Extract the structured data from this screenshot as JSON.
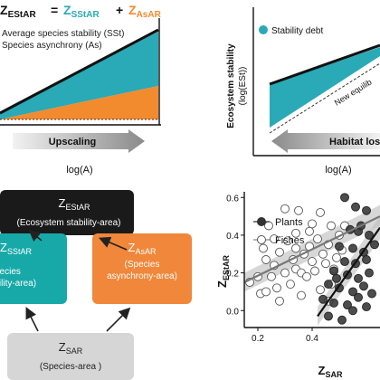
{
  "panelA": {
    "eq_left": "Z",
    "eq_left_sub": "EStAR",
    "eq_equals": "=",
    "eq_term1": "Z",
    "eq_term1_sub": "SStAR",
    "eq_plus": "+",
    "eq_term2": "Z",
    "eq_term2_sub": "AsAR",
    "legend_line1": "Average species stability (SSt)",
    "legend_line2": "Species asynchrony (As)",
    "arrow_label": "Upscaling",
    "xlabel": "log(A)",
    "colors": {
      "teal": "#2aa9b6",
      "orange": "#f28a2e",
      "black": "#111111"
    }
  },
  "panelB": {
    "legend_label": "Stability debt",
    "ylabel_line1": "Ecosystem stability",
    "ylabel_line2": "(log(ESt))",
    "new_eq_label": "New equilib",
    "arrow_label": "Habitat loss",
    "xlabel": "log(A)"
  },
  "panelC": {
    "top_z": "Z",
    "top_sub": "EStAR",
    "top_desc": "(Ecosystem stability-area)",
    "left_z": "Z",
    "left_sub": "SStAR",
    "left_desc1": "(Species",
    "left_desc2": "stability-area)",
    "right_z": "Z",
    "right_sub": "AsAR",
    "right_desc1": "(Species",
    "right_desc2": "asynchrony-area)",
    "bottom_z": "Z",
    "bottom_sub": "SAR",
    "bottom_desc": "(Species-area )",
    "colors": {
      "black_box": "#1a1a1a",
      "teal_box": "#17a9a8",
      "orange_box": "#f0873a",
      "grey_box": "#d6d6d6"
    }
  },
  "chart_data": {
    "type": "scatter",
    "title": "",
    "xlabel": "Z",
    "xlabel_sub": "SAR",
    "ylabel": "Z",
    "ylabel_sub": "EStAR",
    "xlim": [
      0.15,
      0.65
    ],
    "ylim": [
      -0.09,
      0.63
    ],
    "x_ticks": [
      0.2,
      0.4
    ],
    "x_tick_labels": [
      "0.2",
      "0.4"
    ],
    "y_ticks": [
      0.0,
      0.2,
      0.4,
      0.6
    ],
    "y_tick_labels": [
      "0.0",
      "0.2",
      "0.4",
      "0.6"
    ],
    "legend_position": "top-left",
    "series": [
      {
        "name": "Plants",
        "marker": "filled",
        "color": "#333333",
        "points": [
          [
            0.52,
            0.6
          ],
          [
            0.56,
            0.55
          ],
          [
            0.6,
            0.53
          ],
          [
            0.54,
            0.43
          ],
          [
            0.57,
            0.42
          ],
          [
            0.61,
            0.4
          ],
          [
            0.5,
            0.34
          ],
          [
            0.55,
            0.33
          ],
          [
            0.59,
            0.31
          ],
          [
            0.63,
            0.35
          ],
          [
            0.52,
            0.26
          ],
          [
            0.56,
            0.25
          ],
          [
            0.6,
            0.27
          ],
          [
            0.48,
            0.21
          ],
          [
            0.53,
            0.19
          ],
          [
            0.57,
            0.17
          ],
          [
            0.61,
            0.2
          ],
          [
            0.46,
            0.14
          ],
          [
            0.5,
            0.12
          ],
          [
            0.55,
            0.1
          ],
          [
            0.59,
            0.13
          ],
          [
            0.44,
            0.06
          ],
          [
            0.48,
            0.04
          ],
          [
            0.53,
            0.03
          ],
          [
            0.57,
            0.07
          ],
          [
            0.62,
            0.09
          ],
          [
            0.46,
            -0.03
          ],
          [
            0.51,
            -0.05
          ],
          [
            0.55,
            0.0
          ],
          [
            0.6,
            0.02
          ],
          [
            0.49,
            0.17
          ],
          [
            0.58,
            0.45
          ]
        ],
        "fit": [
          [
            0.42,
            -0.03
          ],
          [
            0.65,
            0.44
          ]
        ],
        "fit_band": [
          [
            0.42,
            -0.08,
            0.02
          ],
          [
            0.65,
            0.38,
            0.5
          ]
        ]
      },
      {
        "name": "Fishes",
        "marker": "open",
        "color": "#7a7a7a",
        "points": [
          [
            0.17,
            0.15
          ],
          [
            0.2,
            0.18
          ],
          [
            0.21,
            0.09
          ],
          [
            0.23,
            0.1
          ],
          [
            0.23,
            0.27
          ],
          [
            0.22,
            0.33
          ],
          [
            0.25,
            0.18
          ],
          [
            0.26,
            0.24
          ],
          [
            0.27,
            0.12
          ],
          [
            0.28,
            0.31
          ],
          [
            0.24,
            0.45
          ],
          [
            0.3,
            0.2
          ],
          [
            0.31,
            0.37
          ],
          [
            0.3,
            0.54
          ],
          [
            0.32,
            0.14
          ],
          [
            0.33,
            0.27
          ],
          [
            0.34,
            0.22
          ],
          [
            0.34,
            0.41
          ],
          [
            0.35,
            0.53
          ],
          [
            0.36,
            0.08
          ],
          [
            0.37,
            0.3
          ],
          [
            0.36,
            0.2
          ],
          [
            0.38,
            0.18
          ],
          [
            0.39,
            0.34
          ],
          [
            0.4,
            0.26
          ],
          [
            0.4,
            0.46
          ],
          [
            0.41,
            0.21
          ],
          [
            0.42,
            0.38
          ],
          [
            0.43,
            0.11
          ],
          [
            0.44,
            0.3
          ],
          [
            0.45,
            0.25
          ],
          [
            0.43,
            0.52
          ],
          [
            0.46,
            0.35
          ],
          [
            0.47,
            0.45
          ],
          [
            0.48,
            0.22
          ],
          [
            0.49,
            0.28
          ],
          [
            0.5,
            0.4
          ],
          [
            0.51,
            0.32
          ],
          [
            0.52,
            0.45
          ],
          [
            0.47,
            0.14
          ],
          [
            0.28,
            0.05
          ],
          [
            0.39,
            0.42
          ],
          [
            0.26,
            0.38
          ],
          [
            0.34,
            0.33
          ],
          [
            0.46,
            0.05
          ]
        ],
        "fit": [
          [
            0.15,
            0.15
          ],
          [
            0.65,
            0.5
          ]
        ],
        "fit_band": [
          [
            0.15,
            0.1,
            0.2
          ],
          [
            0.65,
            0.45,
            0.56
          ]
        ]
      }
    ]
  }
}
